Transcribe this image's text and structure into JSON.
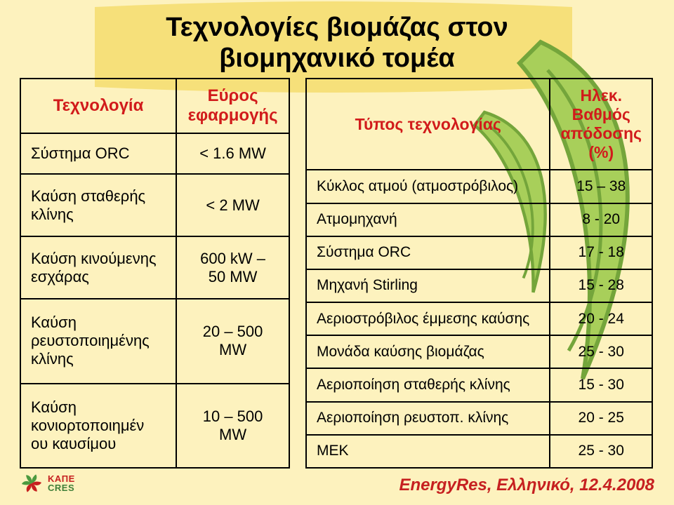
{
  "slide": {
    "background": {
      "base": "#fdf2be",
      "leaf_fill": "#a8cf5a",
      "leaf_stroke": "#74a53b",
      "title_box_fill": "#f6e07a"
    },
    "title": {
      "line1": "Τεχνολογίες βιομάζας στον",
      "line2": "βιομηχανικό τομέα",
      "color": "#000000",
      "font_size": 38
    },
    "left_table": {
      "header_left": "Τεχνολογία",
      "header_right": "Εύρος\nεφαρμογής",
      "header_color": "#d11b1b",
      "cell_font_size": 22,
      "header_font_size": 24,
      "rows": [
        {
          "label": "Σύστημα ORC",
          "value": "< 1.6 MW"
        },
        {
          "label": "Καύση σταθερής κλίνης",
          "value": "< 2 MW"
        },
        {
          "label": "Καύση κινούμενης εσχάρας",
          "value": "600 kW –\n50 MW"
        },
        {
          "label": "Καύση ρευστοποιημένης κλίνης",
          "value": "20 – 500\nMW"
        },
        {
          "label": "Καύση κονιορτοποιημέν\nου καυσίμου",
          "value": "10 – 500\nMW"
        }
      ]
    },
    "right_table": {
      "header_left": "Τύπος τεχνολογίας",
      "header_right": "Ηλεκ.\nΒαθμός\nαπόδοσης\n(%)",
      "header_color": "#d11b1b",
      "cell_font_size": 21,
      "header_font_size": 23,
      "rows": [
        {
          "label": "Κύκλος ατμού (ατμοστρόβιλος)",
          "value": "15 – 38"
        },
        {
          "label": "Ατμομηχανή",
          "value": "8 - 20"
        },
        {
          "label": "Σύστημα ORC",
          "value": "17 - 18"
        },
        {
          "label": "Μηχανή Stirling",
          "value": "15 - 28"
        },
        {
          "label": "Αεριοστρόβιλος έμμεσης καύσης",
          "value": "20 - 24"
        },
        {
          "label": "Μονάδα καύσης βιομάζας",
          "value": "25 - 30"
        },
        {
          "label": "Αεριοποίηση σταθερής κλίνης",
          "value": "15 - 30"
        },
        {
          "label": "Αεριοποίηση ρευστοπ. κλίνης",
          "value": "20 - 25"
        },
        {
          "label": "ΜΕΚ",
          "value": "25 - 30"
        }
      ]
    },
    "footer": {
      "logo_top": "ΚΑΠΕ",
      "logo_bottom": "CRES",
      "logo_color_top": "#c62020",
      "logo_color_bottom": "#407f39",
      "logo_mark_red": "#c62020",
      "logo_mark_green": "#4c9a3f",
      "event_text": "EnergyRes, Ελληνικό, 12.4.2008",
      "event_font_size": 24
    }
  }
}
